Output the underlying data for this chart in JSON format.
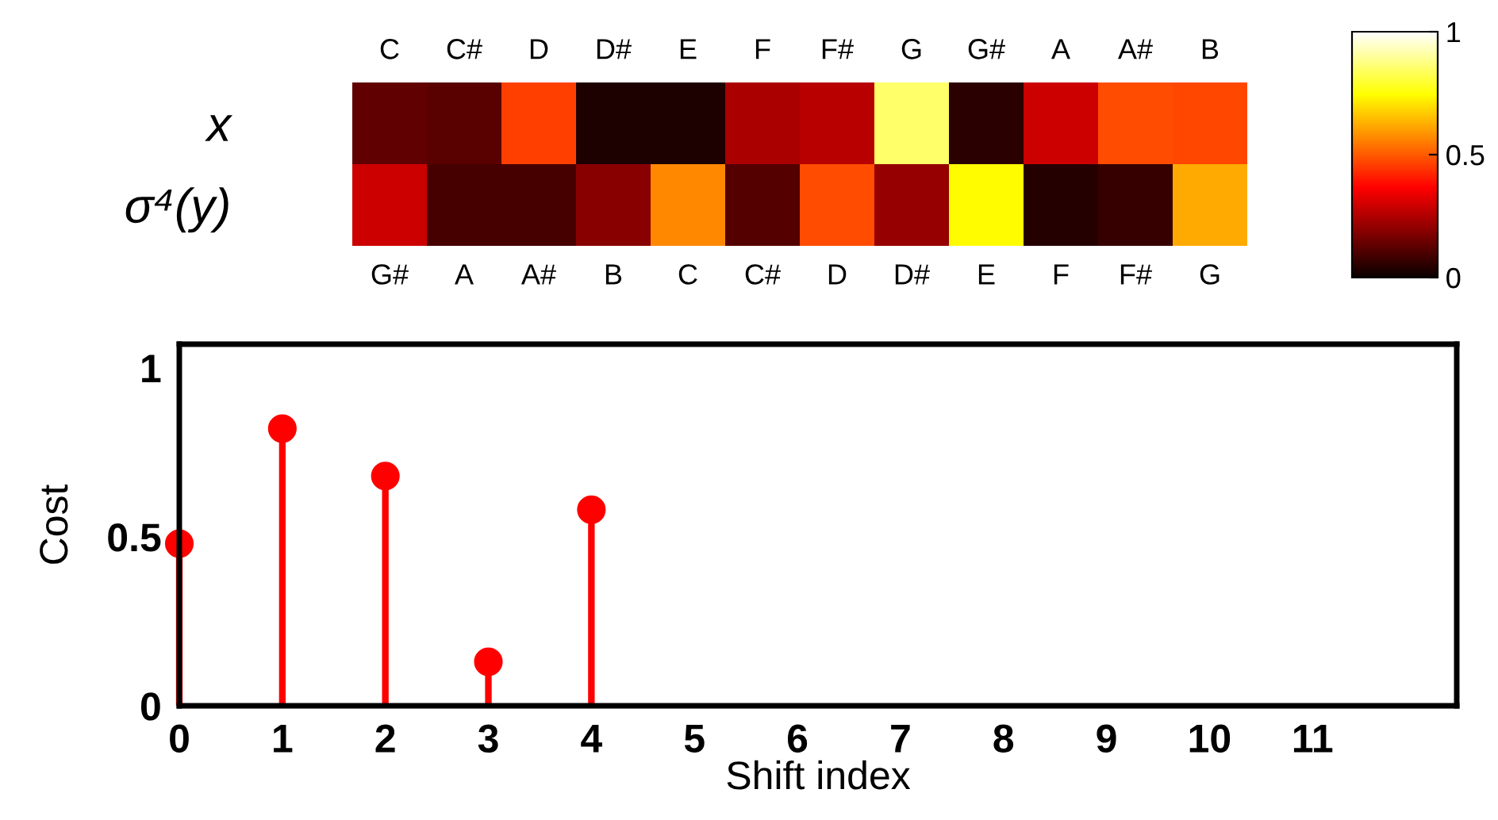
{
  "chart_data": [
    {
      "type": "heatmap",
      "categories": [
        "C",
        "C#",
        "D",
        "D#",
        "E",
        "F",
        "F#",
        "G",
        "G#",
        "A",
        "A#",
        "B"
      ],
      "y_categories": [
        "x",
        "σ⁴(y)"
      ],
      "cells": [
        [
          0.13,
          0.12,
          0.46,
          0.03,
          0.03,
          0.24,
          0.26,
          0.85,
          0.05,
          0.29,
          0.48,
          0.47
        ],
        [
          0.29,
          0.09,
          0.09,
          0.19,
          0.57,
          0.11,
          0.48,
          0.21,
          0.74,
          0.04,
          0.07,
          0.62
        ]
      ],
      "annotations": [
        "G#",
        "A",
        "A#",
        "B",
        "C",
        "C#",
        "D",
        "D#",
        "E",
        "F",
        "F#",
        "G"
      ],
      "clim": [
        0,
        1
      ],
      "cticks": [
        0,
        0.5,
        1
      ]
    },
    {
      "type": "lollipop",
      "xlabel": "Shift index",
      "ylabel": "Cost",
      "x": [
        0,
        1,
        2,
        3,
        4
      ],
      "values": [
        0.48,
        0.82,
        0.68,
        0.13,
        0.58
      ],
      "color": "#ff0000",
      "marker": "circle",
      "xlim": [
        0,
        12.4
      ],
      "xticks": [
        0,
        1,
        2,
        3,
        4,
        5,
        6,
        7,
        8,
        9,
        10,
        11
      ],
      "ylim": [
        0,
        1.07
      ],
      "yticks": [
        0,
        0.5,
        1
      ],
      "grid": false
    }
  ]
}
